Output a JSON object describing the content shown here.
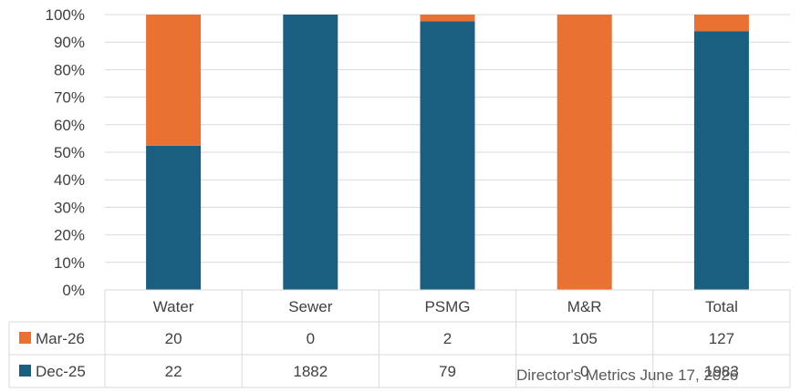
{
  "chart_data": {
    "type": "bar",
    "stacked": true,
    "normalized": true,
    "categories": [
      "Water",
      "Sewer",
      "PSMG",
      "M&R",
      "Total"
    ],
    "series": [
      {
        "name": "Dec-25",
        "values": [
          22,
          1882,
          79,
          0,
          1983
        ],
        "color": "#1a5e80"
      },
      {
        "name": "Mar-26",
        "values": [
          20,
          0,
          2,
          105,
          127
        ],
        "color": "#e97132"
      }
    ],
    "y_ticks": [
      "0%",
      "10%",
      "20%",
      "30%",
      "40%",
      "50%",
      "60%",
      "70%",
      "80%",
      "90%",
      "100%"
    ],
    "ylim": [
      0,
      100
    ],
    "grid": true,
    "legend": "data-table",
    "data_table": {
      "rows": [
        {
          "label": "Mar-26",
          "values": [
            "20",
            "0",
            "2",
            "105",
            "127"
          ]
        },
        {
          "label": "Dec-25",
          "values": [
            "22",
            "1882",
            "79",
            "0",
            "1983"
          ]
        }
      ]
    }
  },
  "footer": "Director's Metrics June 17, 2026"
}
